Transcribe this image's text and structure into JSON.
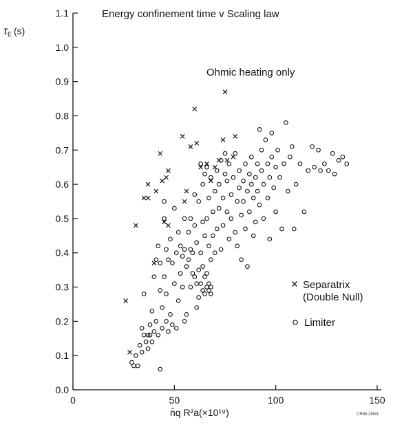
{
  "chart_data": {
    "type": "scatter",
    "title": "Energy confinement time v Scaling law",
    "annotation": "Ohmic heating only",
    "ylabel": "τE (s)",
    "ylabel_symbol": "τ",
    "ylabel_sub": "E",
    "ylabel_unit": "(s)",
    "xlabel": "n̄q R²a(×10¹⁹)",
    "xlim": [
      0,
      150
    ],
    "ylim": [
      0,
      1.1
    ],
    "x_ticks": [
      0,
      50,
      100,
      150
    ],
    "x_tick_labels": [
      "0",
      "50",
      "100",
      "150"
    ],
    "y_ticks": [
      0.0,
      0.1,
      0.2,
      0.3,
      0.4,
      0.5,
      0.6,
      0.7,
      0.8,
      0.9,
      1.0,
      1.1
    ],
    "y_tick_labels": [
      "0.0",
      "0.1",
      "0.2",
      "0.3",
      "0.4",
      "0.5",
      "0.6",
      "0.7",
      "0.8",
      "0.9",
      "1.0",
      "1.1"
    ],
    "grid": false,
    "legend_position": "right-center",
    "figure_code": "CR86.289/4",
    "series": [
      {
        "name": "Separatrix",
        "name_line2": "(Double Null)",
        "marker": "x",
        "points": [
          [
            26,
            0.26
          ],
          [
            28,
            0.11
          ],
          [
            31,
            0.48
          ],
          [
            35,
            0.56
          ],
          [
            37,
            0.56
          ],
          [
            37,
            0.6
          ],
          [
            40,
            0.37
          ],
          [
            41,
            0.58
          ],
          [
            43,
            0.69
          ],
          [
            44,
            0.61
          ],
          [
            45,
            0.49
          ],
          [
            46,
            0.62
          ],
          [
            47,
            0.64
          ],
          [
            47,
            0.48
          ],
          [
            54,
            0.74
          ],
          [
            55,
            0.55
          ],
          [
            56,
            0.58
          ],
          [
            58,
            0.71
          ],
          [
            60,
            0.82
          ],
          [
            61,
            0.72
          ],
          [
            63,
            0.65
          ],
          [
            66,
            0.66
          ],
          [
            68,
            0.61
          ],
          [
            70,
            0.65
          ],
          [
            72,
            0.67
          ],
          [
            74,
            0.73
          ],
          [
            75,
            0.87
          ],
          [
            76,
            0.67
          ],
          [
            79,
            0.68
          ],
          [
            80,
            0.74
          ]
        ]
      },
      {
        "name": "Limiter",
        "marker": "o",
        "points": [
          [
            29,
            0.08
          ],
          [
            30,
            0.07
          ],
          [
            31,
            0.1
          ],
          [
            32,
            0.07
          ],
          [
            33,
            0.13
          ],
          [
            34,
            0.11
          ],
          [
            34,
            0.18
          ],
          [
            35,
            0.16
          ],
          [
            35,
            0.28
          ],
          [
            36,
            0.14
          ],
          [
            37,
            0.16
          ],
          [
            37,
            0.12
          ],
          [
            38,
            0.19
          ],
          [
            38,
            0.16
          ],
          [
            39,
            0.14
          ],
          [
            39,
            0.23
          ],
          [
            40,
            0.17
          ],
          [
            40,
            0.33
          ],
          [
            41,
            0.38
          ],
          [
            41,
            0.2
          ],
          [
            42,
            0.16
          ],
          [
            42,
            0.42
          ],
          [
            43,
            0.06
          ],
          [
            43,
            0.29
          ],
          [
            43,
            0.37
          ],
          [
            44,
            0.18
          ],
          [
            44,
            0.24
          ],
          [
            45,
            0.33
          ],
          [
            45,
            0.5
          ],
          [
            45,
            0.55
          ],
          [
            46,
            0.2
          ],
          [
            46,
            0.41
          ],
          [
            46,
            0.28
          ],
          [
            47,
            0.38
          ],
          [
            47,
            0.17
          ],
          [
            48,
            0.22
          ],
          [
            48,
            0.44
          ],
          [
            49,
            0.19
          ],
          [
            49,
            0.37
          ],
          [
            50,
            0.31
          ],
          [
            50,
            0.53
          ],
          [
            51,
            0.18
          ],
          [
            51,
            0.4
          ],
          [
            52,
            0.26
          ],
          [
            52,
            0.46
          ],
          [
            53,
            0.34
          ],
          [
            53,
            0.42
          ],
          [
            54,
            0.39
          ],
          [
            54,
            0.3
          ],
          [
            55,
            0.2
          ],
          [
            55,
            0.41
          ],
          [
            55,
            0.5
          ],
          [
            56,
            0.22
          ],
          [
            56,
            0.36
          ],
          [
            57,
            0.38
          ],
          [
            57,
            0.46
          ],
          [
            58,
            0.3
          ],
          [
            58,
            0.41
          ],
          [
            58,
            0.5
          ],
          [
            59,
            0.34
          ],
          [
            59,
            0.4
          ],
          [
            60,
            0.33
          ],
          [
            60,
            0.48
          ],
          [
            60,
            0.57
          ],
          [
            61,
            0.31
          ],
          [
            61,
            0.43
          ],
          [
            61,
            0.24
          ],
          [
            62,
            0.35
          ],
          [
            62,
            0.27
          ],
          [
            62,
            0.55
          ],
          [
            63,
            0.31
          ],
          [
            63,
            0.4
          ],
          [
            63,
            0.66
          ],
          [
            64,
            0.29
          ],
          [
            64,
            0.36
          ],
          [
            64,
            0.49
          ],
          [
            64,
            0.6
          ],
          [
            65,
            0.28
          ],
          [
            65,
            0.33
          ],
          [
            65,
            0.45
          ],
          [
            65,
            0.63
          ],
          [
            66,
            0.3
          ],
          [
            66,
            0.34
          ],
          [
            66,
            0.5
          ],
          [
            66,
            0.65
          ],
          [
            67,
            0.29
          ],
          [
            67,
            0.31
          ],
          [
            67,
            0.42
          ],
          [
            67,
            0.56
          ],
          [
            68,
            0.3
          ],
          [
            68,
            0.28
          ],
          [
            68,
            0.38
          ],
          [
            68,
            0.62
          ],
          [
            69,
            0.45
          ],
          [
            69,
            0.52
          ],
          [
            70,
            0.58
          ],
          [
            70,
            0.4
          ],
          [
            71,
            0.47
          ],
          [
            71,
            0.64
          ],
          [
            72,
            0.53
          ],
          [
            72,
            0.6
          ],
          [
            73,
            0.41
          ],
          [
            73,
            0.67
          ],
          [
            74,
            0.48
          ],
          [
            74,
            0.56
          ],
          [
            75,
            0.63
          ],
          [
            75,
            0.69
          ],
          [
            76,
            0.52
          ],
          [
            76,
            0.61
          ],
          [
            77,
            0.44
          ],
          [
            77,
            0.66
          ],
          [
            78,
            0.57
          ],
          [
            78,
            0.5
          ],
          [
            79,
            0.62
          ],
          [
            80,
            0.46
          ],
          [
            80,
            0.69
          ],
          [
            81,
            0.55
          ],
          [
            81,
            0.42
          ],
          [
            82,
            0.59
          ],
          [
            82,
            0.64
          ],
          [
            83,
            0.51
          ],
          [
            83,
            0.38
          ],
          [
            84,
            0.61
          ],
          [
            84,
            0.55
          ],
          [
            85,
            0.47
          ],
          [
            85,
            0.66
          ],
          [
            86,
            0.36
          ],
          [
            86,
            0.58
          ],
          [
            87,
            0.63
          ],
          [
            87,
            0.52
          ],
          [
            88,
            0.6
          ],
          [
            88,
            0.68
          ],
          [
            89,
            0.45
          ],
          [
            89,
            0.56
          ],
          [
            90,
            0.62
          ],
          [
            90,
            0.49
          ],
          [
            91,
            0.66
          ],
          [
            91,
            0.58
          ],
          [
            92,
            0.76
          ],
          [
            92,
            0.54
          ],
          [
            93,
            0.64
          ],
          [
            93,
            0.7
          ],
          [
            94,
            0.6
          ],
          [
            94,
            0.5
          ],
          [
            95,
            0.73
          ],
          [
            96,
            0.66
          ],
          [
            96,
            0.56
          ],
          [
            97,
            0.62
          ],
          [
            97,
            0.44
          ],
          [
            98,
            0.75
          ],
          [
            98,
            0.68
          ],
          [
            99,
            0.59
          ],
          [
            100,
            0.65
          ],
          [
            100,
            0.52
          ],
          [
            101,
            0.7
          ],
          [
            102,
            0.62
          ],
          [
            103,
            0.47
          ],
          [
            104,
            0.66
          ],
          [
            105,
            0.78
          ],
          [
            106,
            0.58
          ],
          [
            107,
            0.68
          ],
          [
            108,
            0.71
          ],
          [
            109,
            0.47
          ],
          [
            110,
            0.6
          ],
          [
            112,
            0.66
          ],
          [
            114,
            0.52
          ],
          [
            116,
            0.64
          ],
          [
            118,
            0.71
          ],
          [
            119,
            0.65
          ],
          [
            121,
            0.7
          ],
          [
            122,
            0.64
          ],
          [
            124,
            0.66
          ],
          [
            126,
            0.64
          ],
          [
            128,
            0.69
          ],
          [
            129,
            0.63
          ],
          [
            131,
            0.67
          ],
          [
            133,
            0.68
          ],
          [
            135,
            0.66
          ]
        ]
      }
    ]
  }
}
